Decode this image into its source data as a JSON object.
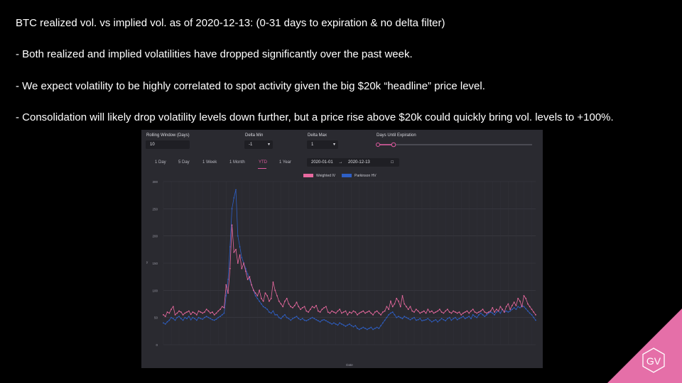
{
  "slide": {
    "line1": "BTC realized vol. vs implied vol. as of 2020-12-13: (0-31 days to expiration & no delta filter)",
    "line2": "- Both realized and implied volatilities have dropped significantly over the past week.",
    "line3": "- We expect volatility to be highly correlated to spot activity given the big $20k “headline” price level.",
    "line4": "- Consolidation will likely drop volatility levels down further, but a price rise above $20k could quickly bring vol. levels to +100%."
  },
  "dashboard": {
    "rolling_window_label": "Rolling Window (Days)",
    "rolling_window_value": "10",
    "delta_min_label": "Delta Min",
    "delta_min_value": "-1",
    "delta_max_label": "Delta Max",
    "delta_max_value": "1",
    "days_until_expiration_label": "Days Until Expiration",
    "tabs": [
      "1 Day",
      "5 Day",
      "1 Week",
      "1 Month",
      "YTD",
      "1 Year"
    ],
    "active_tab": "YTD",
    "date_from": "2020-01-01",
    "date_separator": "→",
    "date_to": "2020-12-13"
  },
  "brand": {
    "logo_text": "GV",
    "accent": "#e56fa8"
  },
  "colors": {
    "iv": "#e8699f",
    "hv": "#2e5fc4",
    "panel": "#2a2a30"
  },
  "chart_data": {
    "type": "line",
    "xlabel": "Date",
    "ylabel": "y",
    "ylim": [
      0,
      300
    ],
    "yticks": [
      0,
      50,
      100,
      150,
      200,
      250,
      300
    ],
    "x_range": [
      "2020-01-01",
      "2020-12-13"
    ],
    "grid": true,
    "legend_position": "top-center",
    "series": [
      {
        "name": "Weighted IV",
        "values": [
          55,
          52,
          60,
          58,
          65,
          70,
          55,
          58,
          62,
          60,
          55,
          58,
          60,
          62,
          56,
          60,
          58,
          55,
          62,
          60,
          58,
          60,
          65,
          62,
          58,
          60,
          55,
          58,
          62,
          65,
          70,
          68,
          110,
          95,
          140,
          220,
          170,
          175,
          150,
          165,
          140,
          150,
          135,
          120,
          125,
          110,
          100,
          95,
          90,
          100,
          85,
          80,
          95,
          90,
          80,
          85,
          115,
          100,
          90,
          80,
          75,
          70,
          80,
          85,
          75,
          70,
          68,
          72,
          78,
          70,
          65,
          68,
          70,
          62,
          60,
          65,
          70,
          68,
          72,
          62,
          60,
          65,
          68,
          70,
          60,
          58,
          62,
          60,
          58,
          62,
          65,
          58,
          60,
          62,
          55,
          60,
          58,
          62,
          60,
          55,
          58,
          60,
          62,
          58,
          60,
          62,
          58,
          55,
          60,
          62,
          58,
          55,
          60,
          62,
          70,
          65,
          80,
          70,
          75,
          85,
          80,
          70,
          90,
          75,
          70,
          65,
          70,
          62,
          60,
          65,
          62,
          58,
          60,
          62,
          58,
          65,
          60,
          62,
          58,
          60,
          62,
          65,
          60,
          58,
          62,
          65,
          60,
          58,
          62,
          60,
          58,
          60,
          55,
          58,
          60,
          62,
          58,
          62,
          65,
          60,
          58,
          60,
          62,
          65,
          60,
          58,
          60,
          62,
          68,
          60,
          65,
          62,
          70,
          65,
          60,
          70,
          75,
          65,
          72,
          78,
          72,
          85,
          80,
          70,
          90,
          85,
          75,
          70,
          65,
          60,
          55
        ]
      },
      {
        "name": "Parkinson HV",
        "values": [
          40,
          38,
          42,
          45,
          50,
          48,
          45,
          50,
          52,
          48,
          45,
          50,
          48,
          52,
          46,
          50,
          48,
          45,
          50,
          48,
          47,
          50,
          52,
          50,
          48,
          46,
          45,
          47,
          50,
          52,
          55,
          58,
          90,
          120,
          180,
          250,
          270,
          285,
          200,
          180,
          160,
          150,
          140,
          130,
          120,
          110,
          100,
          90,
          85,
          80,
          75,
          70,
          68,
          65,
          60,
          58,
          62,
          55,
          55,
          50,
          48,
          52,
          55,
          50,
          48,
          45,
          48,
          50,
          52,
          48,
          46,
          48,
          45,
          44,
          46,
          48,
          50,
          48,
          46,
          44,
          42,
          45,
          46,
          44,
          42,
          40,
          38,
          40,
          38,
          36,
          40,
          38,
          36,
          34,
          36,
          38,
          35,
          33,
          35,
          30,
          28,
          30,
          32,
          30,
          28,
          30,
          32,
          28,
          30,
          32,
          30,
          35,
          40,
          45,
          50,
          55,
          58,
          60,
          55,
          50,
          52,
          50,
          48,
          52,
          50,
          48,
          46,
          48,
          50,
          45,
          46,
          48,
          44,
          45,
          46,
          48,
          45,
          42,
          44,
          46,
          42,
          45,
          48,
          46,
          44,
          48,
          50,
          45,
          48,
          50,
          46,
          48,
          50,
          52,
          48,
          50,
          52,
          48,
          55,
          52,
          50,
          55,
          58,
          55,
          52,
          55,
          58,
          60,
          58,
          55,
          60,
          62,
          58,
          65,
          60,
          62,
          60,
          62,
          65,
          68,
          65,
          70,
          68,
          72,
          70,
          66,
          62,
          58,
          55,
          50,
          45
        ]
      }
    ]
  }
}
